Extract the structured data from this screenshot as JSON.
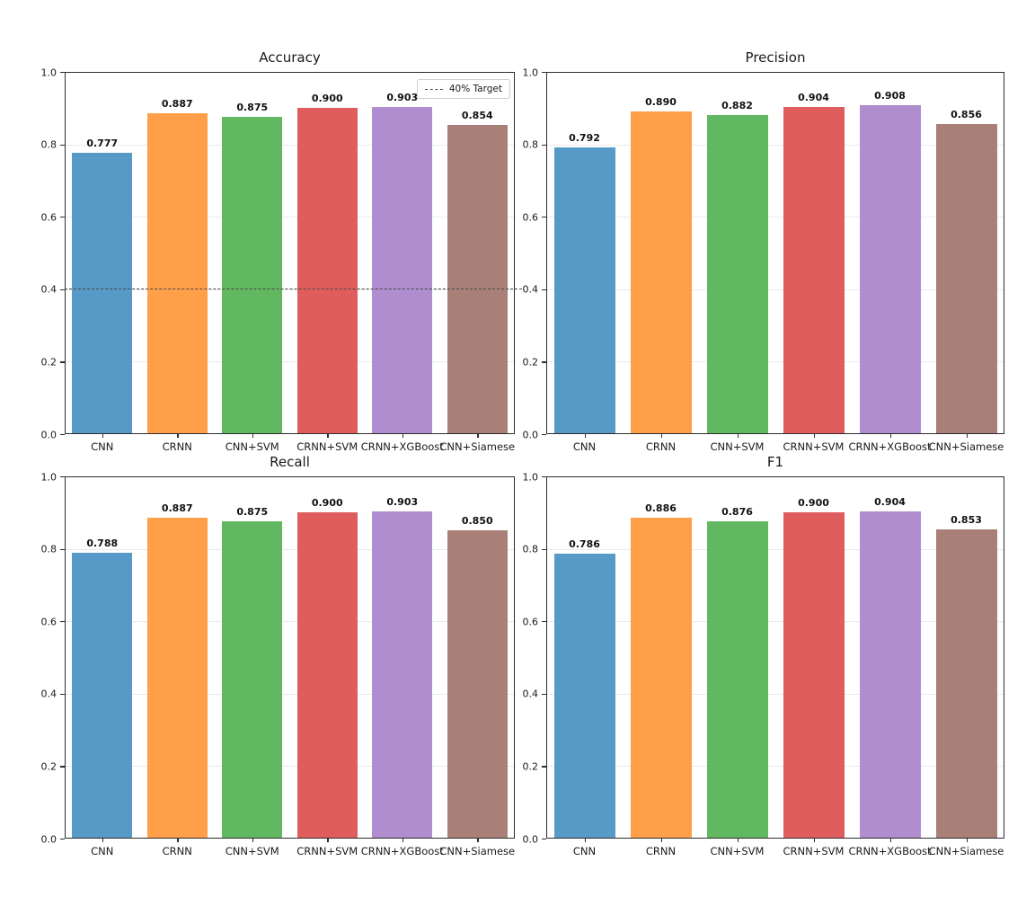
{
  "figure": {
    "background_color": "#ffffff",
    "text_color": "#1a1a1a",
    "grid_color": "#e9e9e9",
    "spine_color": "#2d2d2d",
    "target_line_color": "#4a4a4a",
    "bar_color_names": [
      "blue",
      "orange",
      "green",
      "red",
      "purple",
      "brown"
    ],
    "bar_colors": [
      "#579AC7",
      "#FF9F4A",
      "#61B861",
      "#E05D5E",
      "#AF8DCE",
      "#A98078"
    ]
  },
  "chart_data": [
    {
      "id": "accuracy",
      "type": "bar",
      "title": "Accuracy",
      "categories": [
        "CNN",
        "CRNN",
        "CNN+SVM",
        "CRNN+SVM",
        "CRNN+XGBoost",
        "CNN+Siamese"
      ],
      "values": [
        0.777,
        0.887,
        0.875,
        0.9,
        0.903,
        0.854
      ],
      "value_labels": [
        "0.777",
        "0.887",
        "0.875",
        "0.900",
        "0.903",
        "0.854"
      ],
      "ylim": [
        0.0,
        1.0
      ],
      "y_ticks": [
        0.0,
        0.2,
        0.4,
        0.6,
        0.8,
        1.0
      ],
      "y_tick_labels": [
        "0.0",
        "0.2",
        "0.4",
        "0.6",
        "0.8",
        "1.0"
      ],
      "grid": true,
      "target_line": {
        "y": 0.4,
        "style": "dashed",
        "label": "40% Target"
      },
      "legend": {
        "position": "upper-right",
        "entries": [
          {
            "label": "40% Target",
            "line_style": "dashed"
          }
        ]
      }
    },
    {
      "id": "precision",
      "type": "bar",
      "title": "Precision",
      "categories": [
        "CNN",
        "CRNN",
        "CNN+SVM",
        "CRNN+SVM",
        "CRNN+XGBoost",
        "CNN+Siamese"
      ],
      "values": [
        0.792,
        0.89,
        0.882,
        0.904,
        0.908,
        0.856
      ],
      "value_labels": [
        "0.792",
        "0.890",
        "0.882",
        "0.904",
        "0.908",
        "0.856"
      ],
      "ylim": [
        0.0,
        1.0
      ],
      "y_ticks": [
        0.0,
        0.2,
        0.4,
        0.6,
        0.8,
        1.0
      ],
      "y_tick_labels": [
        "0.0",
        "0.2",
        "0.4",
        "0.6",
        "0.8",
        "1.0"
      ],
      "grid": true,
      "target_line": null,
      "legend": null
    },
    {
      "id": "recall",
      "type": "bar",
      "title": "Recall",
      "categories": [
        "CNN",
        "CRNN",
        "CNN+SVM",
        "CRNN+SVM",
        "CRNN+XGBoost",
        "CNN+Siamese"
      ],
      "values": [
        0.788,
        0.887,
        0.875,
        0.9,
        0.903,
        0.85
      ],
      "value_labels": [
        "0.788",
        "0.887",
        "0.875",
        "0.900",
        "0.903",
        "0.850"
      ],
      "ylim": [
        0.0,
        1.0
      ],
      "y_ticks": [
        0.0,
        0.2,
        0.4,
        0.6,
        0.8,
        1.0
      ],
      "y_tick_labels": [
        "0.0",
        "0.2",
        "0.4",
        "0.6",
        "0.8",
        "1.0"
      ],
      "grid": true,
      "target_line": null,
      "legend": null
    },
    {
      "id": "f1",
      "type": "bar",
      "title": "F1",
      "categories": [
        "CNN",
        "CRNN",
        "CNN+SVM",
        "CRNN+SVM",
        "CRNN+XGBoost",
        "CNN+Siamese"
      ],
      "values": [
        0.786,
        0.886,
        0.876,
        0.9,
        0.904,
        0.853
      ],
      "value_labels": [
        "0.786",
        "0.886",
        "0.876",
        "0.900",
        "0.904",
        "0.853"
      ],
      "ylim": [
        0.0,
        1.0
      ],
      "y_ticks": [
        0.0,
        0.2,
        0.4,
        0.6,
        0.8,
        1.0
      ],
      "y_tick_labels": [
        "0.0",
        "0.2",
        "0.4",
        "0.6",
        "0.8",
        "1.0"
      ],
      "grid": true,
      "target_line": null,
      "legend": null
    }
  ]
}
